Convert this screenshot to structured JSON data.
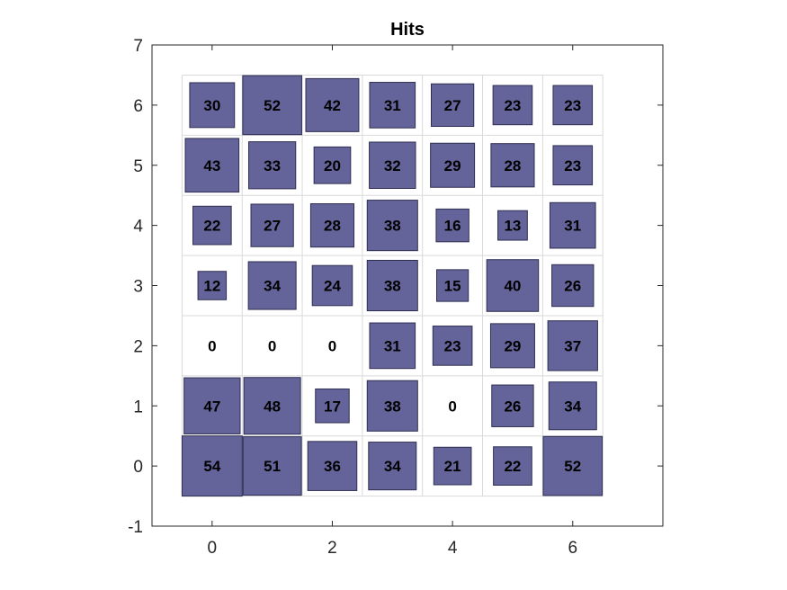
{
  "chart_data": {
    "type": "heatmap",
    "title": "Hits",
    "xlabel": "",
    "ylabel": "",
    "xlim": [
      -1,
      7.5
    ],
    "ylim": [
      -1,
      7
    ],
    "xticks": [
      0,
      2,
      4,
      6
    ],
    "yticks": [
      -1,
      0,
      1,
      2,
      3,
      4,
      5,
      6,
      7
    ],
    "grid": "7x7 cells, grid lines on",
    "max_hits": 54,
    "colors": {
      "patch_fill": "#64649a",
      "patch_stroke": "#2e2e52",
      "grid_line": "#d9d9d9",
      "axes_line": "#262626",
      "text": "#000000"
    },
    "cells": [
      {
        "x": 0,
        "y": 6,
        "hits": 30
      },
      {
        "x": 1,
        "y": 6,
        "hits": 52
      },
      {
        "x": 2,
        "y": 6,
        "hits": 42
      },
      {
        "x": 3,
        "y": 6,
        "hits": 31
      },
      {
        "x": 4,
        "y": 6,
        "hits": 27
      },
      {
        "x": 5,
        "y": 6,
        "hits": 23
      },
      {
        "x": 6,
        "y": 6,
        "hits": 23
      },
      {
        "x": 0,
        "y": 5,
        "hits": 43
      },
      {
        "x": 1,
        "y": 5,
        "hits": 33
      },
      {
        "x": 2,
        "y": 5,
        "hits": 20
      },
      {
        "x": 3,
        "y": 5,
        "hits": 32
      },
      {
        "x": 4,
        "y": 5,
        "hits": 29
      },
      {
        "x": 5,
        "y": 5,
        "hits": 28
      },
      {
        "x": 6,
        "y": 5,
        "hits": 23
      },
      {
        "x": 0,
        "y": 4,
        "hits": 22
      },
      {
        "x": 1,
        "y": 4,
        "hits": 27
      },
      {
        "x": 2,
        "y": 4,
        "hits": 28
      },
      {
        "x": 3,
        "y": 4,
        "hits": 38
      },
      {
        "x": 4,
        "y": 4,
        "hits": 16
      },
      {
        "x": 5,
        "y": 4,
        "hits": 13
      },
      {
        "x": 6,
        "y": 4,
        "hits": 31
      },
      {
        "x": 0,
        "y": 3,
        "hits": 12
      },
      {
        "x": 1,
        "y": 3,
        "hits": 34
      },
      {
        "x": 2,
        "y": 3,
        "hits": 24
      },
      {
        "x": 3,
        "y": 3,
        "hits": 38
      },
      {
        "x": 4,
        "y": 3,
        "hits": 15
      },
      {
        "x": 5,
        "y": 3,
        "hits": 40
      },
      {
        "x": 6,
        "y": 3,
        "hits": 26
      },
      {
        "x": 0,
        "y": 2,
        "hits": 0
      },
      {
        "x": 1,
        "y": 2,
        "hits": 0
      },
      {
        "x": 2,
        "y": 2,
        "hits": 0
      },
      {
        "x": 3,
        "y": 2,
        "hits": 31
      },
      {
        "x": 4,
        "y": 2,
        "hits": 23
      },
      {
        "x": 5,
        "y": 2,
        "hits": 29
      },
      {
        "x": 6,
        "y": 2,
        "hits": 37
      },
      {
        "x": 0,
        "y": 1,
        "hits": 47
      },
      {
        "x": 1,
        "y": 1,
        "hits": 48
      },
      {
        "x": 2,
        "y": 1,
        "hits": 17
      },
      {
        "x": 3,
        "y": 1,
        "hits": 38
      },
      {
        "x": 4,
        "y": 1,
        "hits": 0
      },
      {
        "x": 5,
        "y": 1,
        "hits": 26
      },
      {
        "x": 6,
        "y": 1,
        "hits": 34
      },
      {
        "x": 0,
        "y": 0,
        "hits": 54
      },
      {
        "x": 1,
        "y": 0,
        "hits": 51
      },
      {
        "x": 2,
        "y": 0,
        "hits": 36
      },
      {
        "x": 3,
        "y": 0,
        "hits": 34
      },
      {
        "x": 4,
        "y": 0,
        "hits": 21
      },
      {
        "x": 5,
        "y": 0,
        "hits": 22
      },
      {
        "x": 6,
        "y": 0,
        "hits": 52
      }
    ]
  }
}
